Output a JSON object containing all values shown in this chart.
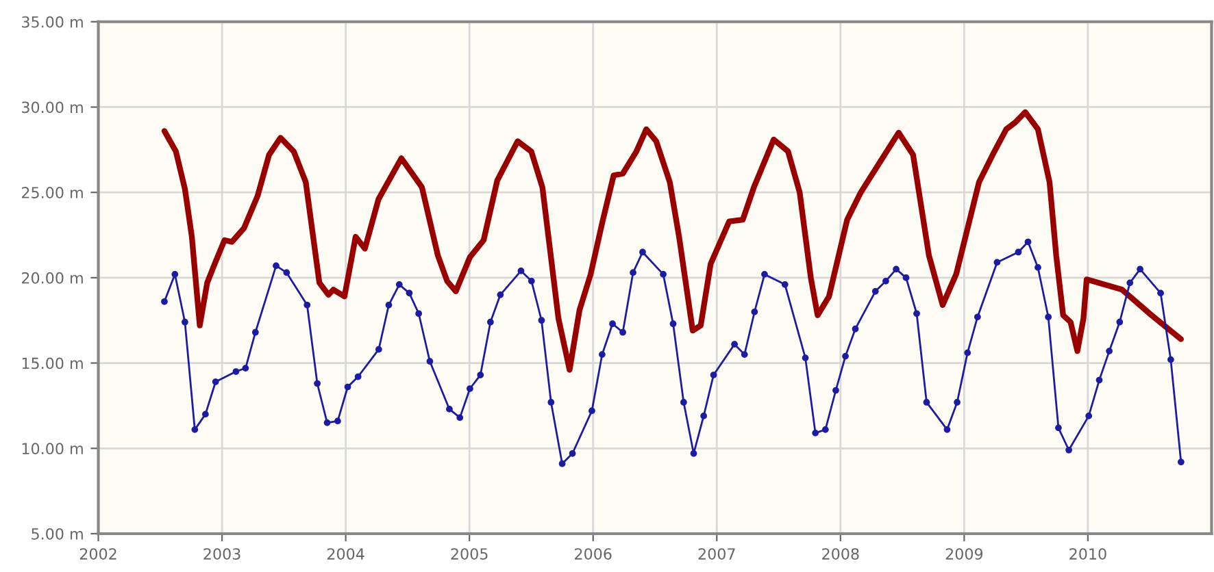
{
  "chart_data": {
    "type": "line",
    "xlim": [
      2002,
      2011
    ],
    "ylim": [
      5,
      35
    ],
    "xticks": [
      2002,
      2003,
      2004,
      2005,
      2006,
      2007,
      2008,
      2009,
      2010
    ],
    "yticks": [
      {
        "value": 5,
        "label": "5.00 m"
      },
      {
        "value": 10,
        "label": "10.00 m"
      },
      {
        "value": 15,
        "label": "15.00 m"
      },
      {
        "value": 20,
        "label": "20.00 m"
      },
      {
        "value": 25,
        "label": "25.00 m"
      },
      {
        "value": 30,
        "label": "30.00 m"
      },
      {
        "value": 35,
        "label": "35.00 m"
      }
    ],
    "grid": true,
    "legend": false,
    "series": [
      {
        "color": "#990000",
        "marker": "none",
        "x": [
          2002.534,
          2002.627,
          2002.7,
          2002.756,
          2002.82,
          2002.88,
          2002.94,
          2003.02,
          2003.08,
          2003.177,
          2003.288,
          2003.38,
          2003.473,
          2003.58,
          2003.677,
          2003.787,
          2003.86,
          2003.9,
          2003.99,
          2004.08,
          2004.155,
          2004.265,
          2004.45,
          2004.616,
          2004.745,
          2004.82,
          2004.89,
          2005.004,
          2005.115,
          2005.225,
          2005.39,
          2005.5,
          2005.59,
          2005.72,
          2005.81,
          2005.89,
          2005.98,
          2006.073,
          2006.166,
          2006.24,
          2006.35,
          2006.43,
          2006.51,
          2006.62,
          2006.695,
          2006.805,
          2006.87,
          2006.95,
          2007.1,
          2007.21,
          2007.3,
          2007.46,
          2007.576,
          2007.67,
          2007.76,
          2007.815,
          2007.907,
          2008.054,
          2008.164,
          2008.33,
          2008.47,
          2008.587,
          2008.715,
          2008.826,
          2008.935,
          2009.12,
          2009.23,
          2009.34,
          2009.413,
          2009.494,
          2009.596,
          2009.69,
          2009.744,
          2009.8,
          2009.86,
          2009.915,
          2009.964,
          2009.99,
          2010.276,
          2010.515,
          2010.753
        ],
        "values": [
          28.6,
          27.4,
          25.2,
          22.4,
          17.2,
          19.7,
          20.8,
          22.2,
          22.1,
          22.9,
          24.8,
          27.2,
          28.2,
          27.4,
          25.6,
          19.7,
          19.0,
          19.3,
          18.9,
          22.4,
          21.7,
          24.6,
          27.0,
          25.3,
          21.3,
          19.8,
          19.2,
          21.2,
          22.2,
          25.7,
          28.0,
          27.4,
          25.3,
          17.6,
          14.6,
          18.1,
          20.2,
          23.2,
          26.0,
          26.1,
          27.4,
          28.7,
          28.0,
          25.6,
          22.4,
          16.9,
          17.2,
          20.8,
          23.3,
          23.4,
          25.3,
          28.1,
          27.4,
          25.0,
          20.0,
          17.8,
          18.9,
          23.4,
          25.0,
          26.9,
          28.5,
          27.2,
          21.3,
          18.4,
          20.2,
          25.6,
          27.2,
          28.7,
          29.1,
          29.7,
          28.7,
          25.6,
          21.3,
          17.8,
          17.4,
          15.7,
          17.6,
          19.9,
          19.3,
          17.8,
          16.4
        ]
      },
      {
        "color": "#1c1ca0",
        "marker": "circle",
        "x": [
          2002.534,
          2002.619,
          2002.7,
          2002.78,
          2002.866,
          2002.948,
          2003.113,
          2003.19,
          2003.27,
          2003.437,
          2003.522,
          2003.688,
          2003.77,
          2003.85,
          2003.935,
          2004.016,
          2004.1,
          2004.267,
          2004.348,
          2004.433,
          2004.514,
          2004.59,
          2004.68,
          2004.838,
          2004.923,
          2005.004,
          2005.089,
          2005.17,
          2005.25,
          2005.417,
          2005.502,
          2005.583,
          2005.66,
          2005.75,
          2005.833,
          2005.99,
          2006.073,
          2006.157,
          2006.24,
          2006.323,
          2006.4,
          2006.567,
          2006.647,
          2006.732,
          2006.813,
          2006.894,
          2006.974,
          2007.143,
          2007.224,
          2007.305,
          2007.386,
          2007.551,
          2007.716,
          2007.797,
          2007.878,
          2007.962,
          2008.04,
          2008.12,
          2008.282,
          2008.366,
          2008.45,
          2008.53,
          2008.616,
          2008.696,
          2008.862,
          2008.943,
          2009.027,
          2009.108,
          2009.266,
          2009.438,
          2009.516,
          2009.596,
          2009.68,
          2009.762,
          2009.846,
          2010.007,
          2010.092,
          2010.173,
          2010.257,
          2010.34,
          2010.422,
          2010.588,
          2010.67,
          2010.753
        ],
        "values": [
          18.6,
          20.2,
          17.4,
          11.1,
          12.0,
          13.9,
          14.5,
          14.7,
          16.8,
          20.7,
          20.3,
          18.4,
          13.8,
          11.5,
          11.6,
          13.6,
          14.2,
          15.8,
          18.4,
          19.6,
          19.1,
          17.9,
          15.1,
          12.3,
          11.8,
          13.5,
          14.3,
          17.4,
          19.0,
          20.4,
          19.8,
          17.5,
          12.7,
          9.1,
          9.7,
          12.2,
          15.5,
          17.3,
          16.8,
          20.3,
          21.5,
          20.2,
          17.3,
          12.7,
          9.7,
          11.9,
          14.3,
          16.1,
          15.5,
          18.0,
          20.2,
          19.6,
          15.3,
          10.9,
          11.1,
          13.4,
          15.4,
          17.0,
          19.2,
          19.8,
          20.5,
          20.0,
          17.9,
          12.7,
          11.1,
          12.7,
          15.6,
          17.7,
          20.9,
          21.5,
          22.1,
          20.6,
          17.7,
          11.2,
          9.9,
          11.9,
          14.0,
          15.7,
          17.4,
          19.7,
          20.5,
          19.1,
          15.2,
          9.2
        ]
      }
    ]
  }
}
